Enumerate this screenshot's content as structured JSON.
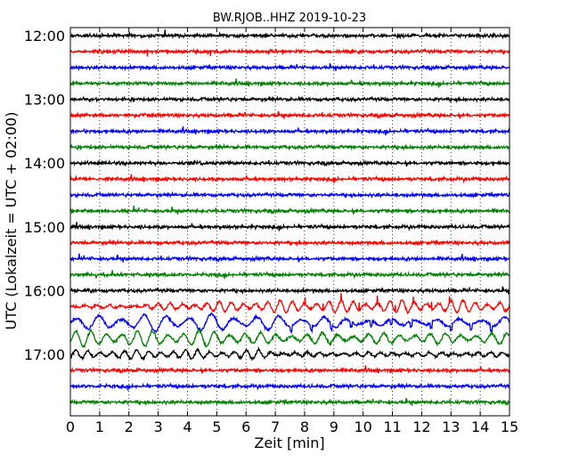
{
  "chart_data": {
    "type": "line",
    "title": "BW.RJOB..HHZ 2019-10-23",
    "xlabel": "Zeit  [min]",
    "ylabel": "UTC (Lokalzeit = UTC + 02:00)",
    "xlim": [
      0,
      15
    ],
    "x_ticks": [
      "0",
      "1",
      "2",
      "3",
      "4",
      "5",
      "6",
      "7",
      "8",
      "9",
      "10",
      "11",
      "12",
      "13",
      "14",
      "15"
    ],
    "y_tick_labels": [
      "12:00",
      "13:00",
      "14:00",
      "15:00",
      "16:00",
      "17:00"
    ],
    "start_time": "12:00",
    "end_time": "17:45",
    "trace_interval_minutes": 15,
    "colors": [
      "#000000",
      "#ff0000",
      "#0000ff",
      "#008000"
    ],
    "grid": "vertical dotted lines at every minute",
    "traces": [
      {
        "start": "12:00",
        "color": "#000000",
        "activity": "background noise"
      },
      {
        "start": "12:15",
        "color": "#ff0000",
        "activity": "background noise"
      },
      {
        "start": "12:30",
        "color": "#0000ff",
        "activity": "background noise"
      },
      {
        "start": "12:45",
        "color": "#008000",
        "activity": "background noise"
      },
      {
        "start": "13:00",
        "color": "#000000",
        "activity": "background noise"
      },
      {
        "start": "13:15",
        "color": "#ff0000",
        "activity": "background noise"
      },
      {
        "start": "13:30",
        "color": "#0000ff",
        "activity": "background noise"
      },
      {
        "start": "13:45",
        "color": "#008000",
        "activity": "background noise"
      },
      {
        "start": "14:00",
        "color": "#000000",
        "activity": "background noise"
      },
      {
        "start": "14:15",
        "color": "#ff0000",
        "activity": "background noise"
      },
      {
        "start": "14:30",
        "color": "#0000ff",
        "activity": "background noise"
      },
      {
        "start": "14:45",
        "color": "#008000",
        "activity": "background noise"
      },
      {
        "start": "15:00",
        "color": "#000000",
        "activity": "background noise"
      },
      {
        "start": "15:15",
        "color": "#ff0000",
        "activity": "background noise"
      },
      {
        "start": "15:30",
        "color": "#0000ff",
        "activity": "background noise"
      },
      {
        "start": "15:45",
        "color": "#008000",
        "activity": "background noise"
      },
      {
        "start": "16:00",
        "color": "#000000",
        "activity": "background noise"
      },
      {
        "start": "16:15",
        "color": "#ff0000",
        "activity": "increasing oscillation from ~3 min, spikes 8-13 min"
      },
      {
        "start": "16:30",
        "color": "#0000ff",
        "activity": "large oscillations throughout"
      },
      {
        "start": "16:45",
        "color": "#008000",
        "activity": "large oscillations, strongest 0-6 min"
      },
      {
        "start": "17:00",
        "color": "#000000",
        "activity": "moderate oscillation 0-7 min"
      },
      {
        "start": "17:15",
        "color": "#ff0000",
        "activity": "background noise"
      },
      {
        "start": "17:30",
        "color": "#0000ff",
        "activity": "background noise"
      },
      {
        "start": "17:45",
        "color": "#008000",
        "activity": "background noise"
      }
    ]
  }
}
